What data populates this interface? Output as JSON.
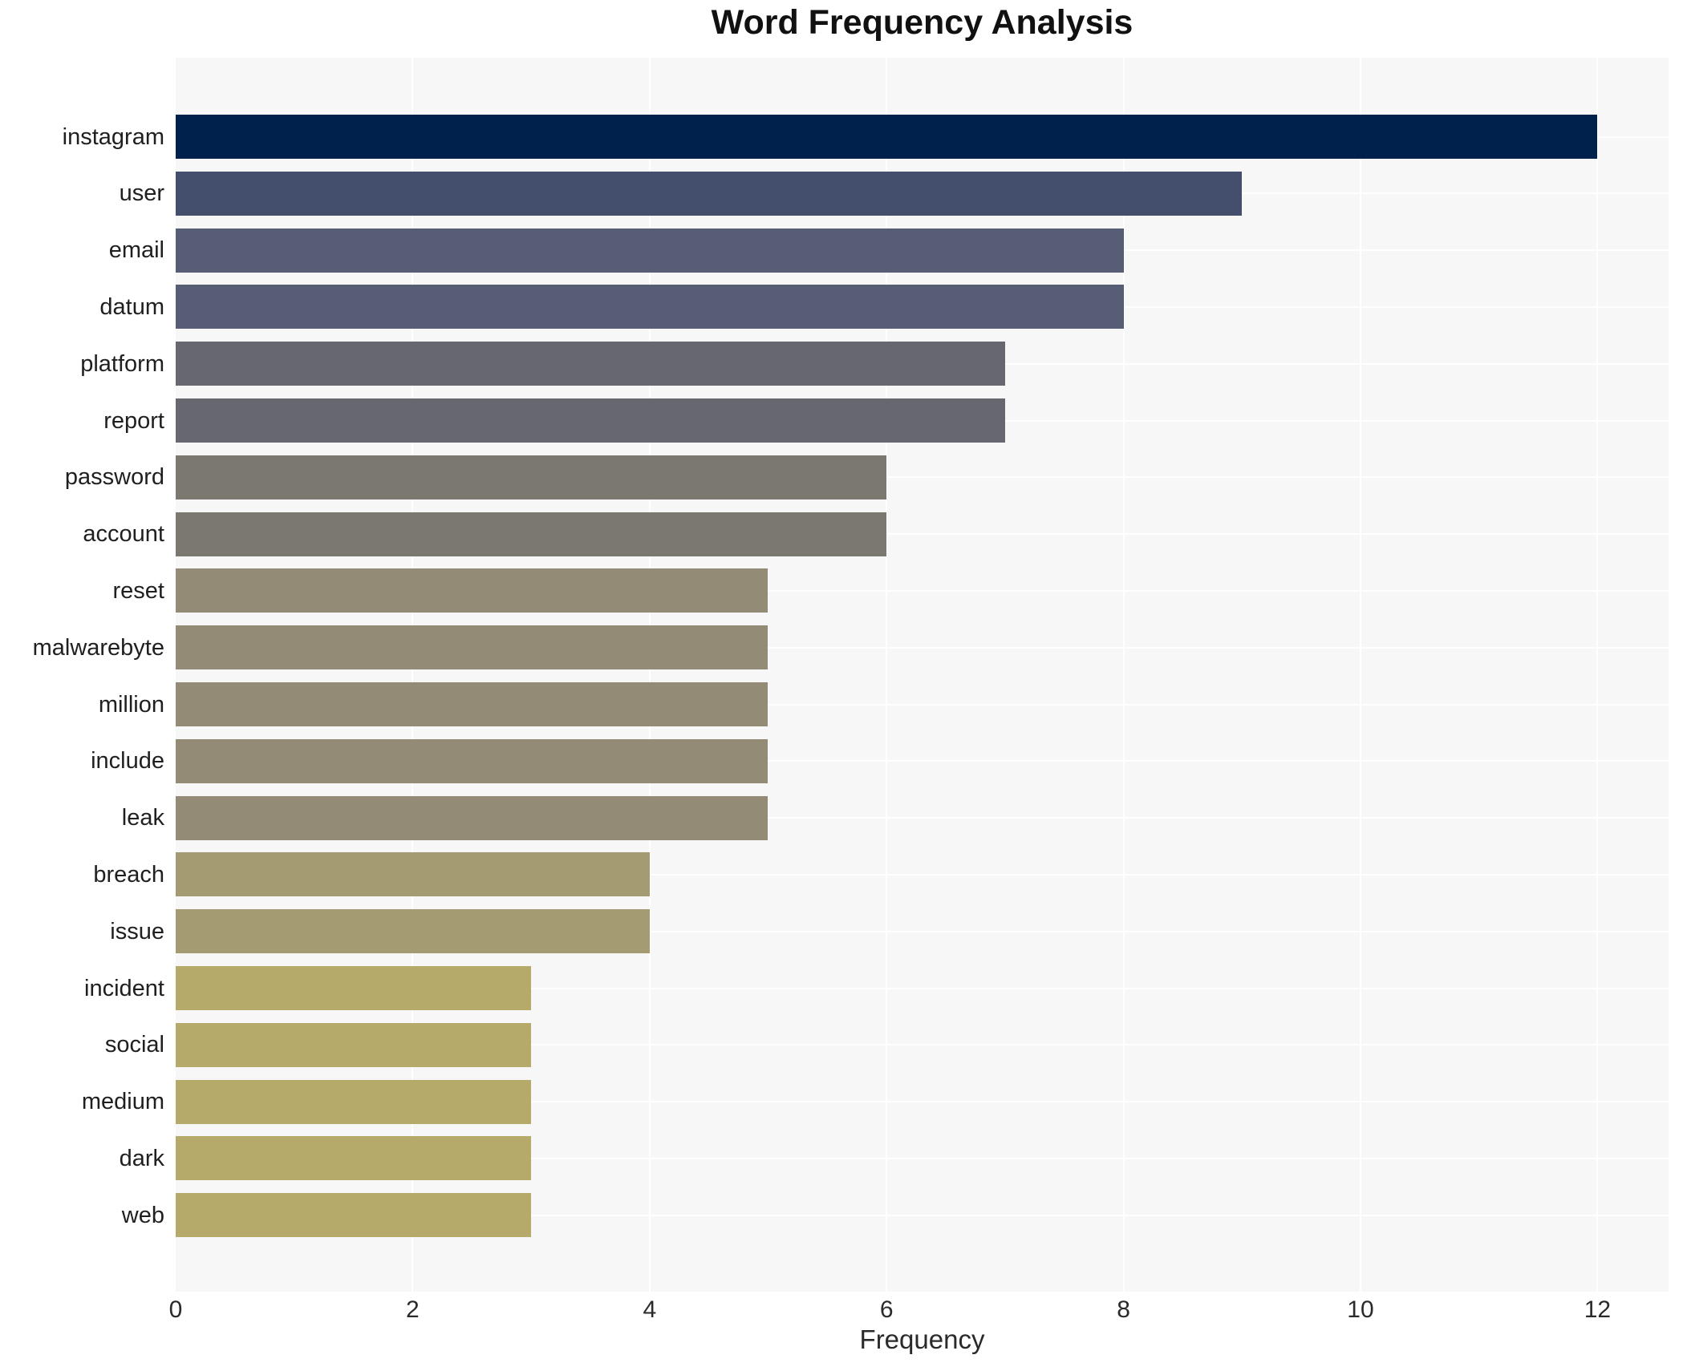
{
  "chart_data": {
    "type": "bar",
    "orientation": "horizontal",
    "title": "Word Frequency Analysis",
    "xlabel": "Frequency",
    "ylabel": "",
    "legend": "none",
    "grid": true,
    "plot_bg_color": "#f7f7f8",
    "grid_color": "#ffffff",
    "xlim": [
      0,
      12.6
    ],
    "xticks": [
      0,
      2,
      4,
      6,
      8,
      10,
      12
    ],
    "categories": [
      "instagram",
      "user",
      "email",
      "datum",
      "platform",
      "report",
      "password",
      "account",
      "reset",
      "malwarebyte",
      "million",
      "include",
      "leak",
      "breach",
      "issue",
      "incident",
      "social",
      "medium",
      "dark",
      "web"
    ],
    "values": [
      12,
      9,
      8,
      8,
      7,
      7,
      6,
      6,
      5,
      5,
      5,
      5,
      5,
      4,
      4,
      3,
      3,
      3,
      3,
      3
    ],
    "bar_colors": [
      "#01214d",
      "#434f6d",
      "#565d74",
      "#565d74",
      "#67686f",
      "#67686f",
      "#7b7870",
      "#7b7870",
      "#938b76",
      "#938b76",
      "#938b76",
      "#938b76",
      "#938b76",
      "#a59b72",
      "#a59b72",
      "#b5aa6a",
      "#b5aa6a",
      "#b5aa6a",
      "#b5aa6a",
      "#b5aa6a"
    ]
  }
}
